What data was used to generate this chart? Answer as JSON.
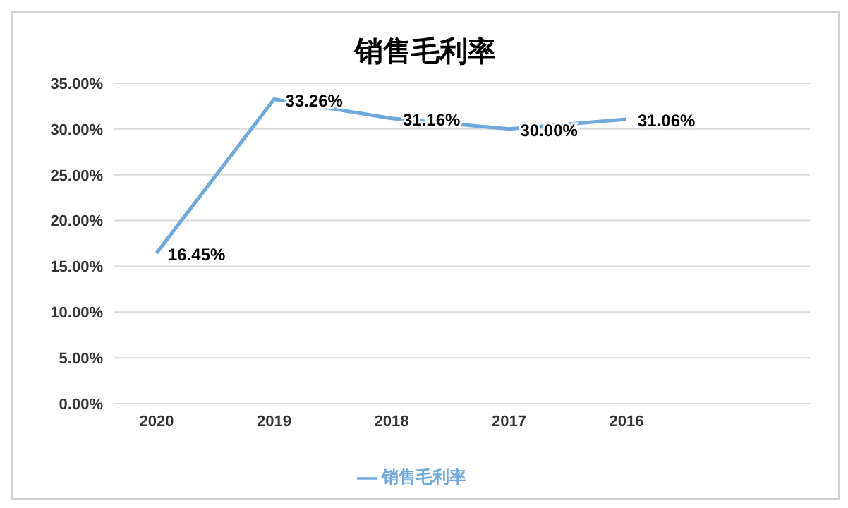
{
  "chart_data": {
    "type": "line",
    "title": "销售毛利率",
    "categories": [
      "2020",
      "2019",
      "2018",
      "2017",
      "2016"
    ],
    "series": [
      {
        "name": "销售毛利率",
        "color": "#6fa8dc",
        "values": [
          16.45,
          33.26,
          31.16,
          30.0,
          31.06
        ],
        "value_labels": [
          "16.45%",
          "33.26%",
          "31.16%",
          "30.00%",
          "31.06%"
        ]
      }
    ],
    "ylim": [
      0,
      35
    ],
    "yticks": [
      {
        "value": 0,
        "label": "0.00%"
      },
      {
        "value": 5,
        "label": "5.00%"
      },
      {
        "value": 10,
        "label": "10.00%"
      },
      {
        "value": 15,
        "label": "15.00%"
      },
      {
        "value": 20,
        "label": "20.00%"
      },
      {
        "value": 25,
        "label": "25.00%"
      },
      {
        "value": 30,
        "label": "30.00%"
      },
      {
        "value": 35,
        "label": "35.00%"
      }
    ],
    "grid": "y",
    "legend": "bottom",
    "marker": "none",
    "line_style": "solid"
  }
}
